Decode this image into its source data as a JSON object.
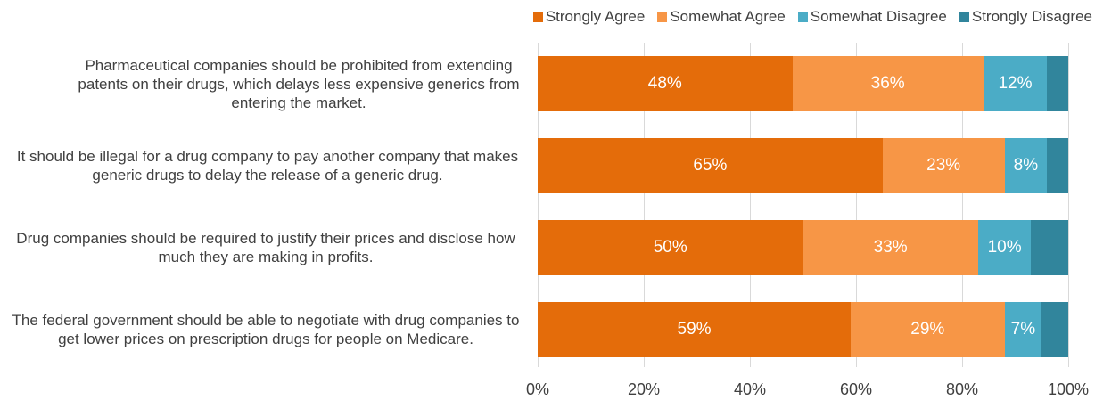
{
  "chart_data": {
    "type": "stacked-bar-horizontal",
    "categories": [
      "Pharmaceutical companies should be prohibited from extending patents on their drugs, which delays less expensive generics from entering the market.",
      "It should be illegal for a drug company to pay another company that makes generic drugs to delay the release of a generic drug.",
      "Drug companies should be required to justify their prices and disclose how much they are making in profits.",
      "The federal government should be able to negotiate with drug companies to get lower prices on prescription drugs for people on Medicare."
    ],
    "series": [
      {
        "name": "Strongly Agree",
        "color": "#e46c0a",
        "values": [
          48,
          65,
          50,
          59
        ],
        "value_labels": [
          "48%",
          "65%",
          "50%",
          "59%"
        ]
      },
      {
        "name": "Somewhat Agree",
        "color": "#f79646",
        "values": [
          36,
          23,
          33,
          29
        ],
        "value_labels": [
          "36%",
          "23%",
          "33%",
          "29%"
        ]
      },
      {
        "name": "Somewhat Disagree",
        "color": "#4bacc6",
        "values": [
          12,
          8,
          10,
          7
        ],
        "value_labels": [
          "12%",
          "8%",
          "10%",
          "7%"
        ]
      },
      {
        "name": "Strongly Disagree",
        "color": "#31859c",
        "values": [
          4,
          4,
          7,
          5
        ]
      }
    ],
    "xlim": [
      0,
      100
    ],
    "xticks": [
      {
        "value": 0,
        "label": "0%"
      },
      {
        "value": 20,
        "label": "20%"
      },
      {
        "value": 40,
        "label": "40%"
      },
      {
        "value": 60,
        "label": "60%"
      },
      {
        "value": 80,
        "label": "80%"
      },
      {
        "value": 100,
        "label": "100%"
      }
    ],
    "grid": true,
    "legend": "top"
  }
}
